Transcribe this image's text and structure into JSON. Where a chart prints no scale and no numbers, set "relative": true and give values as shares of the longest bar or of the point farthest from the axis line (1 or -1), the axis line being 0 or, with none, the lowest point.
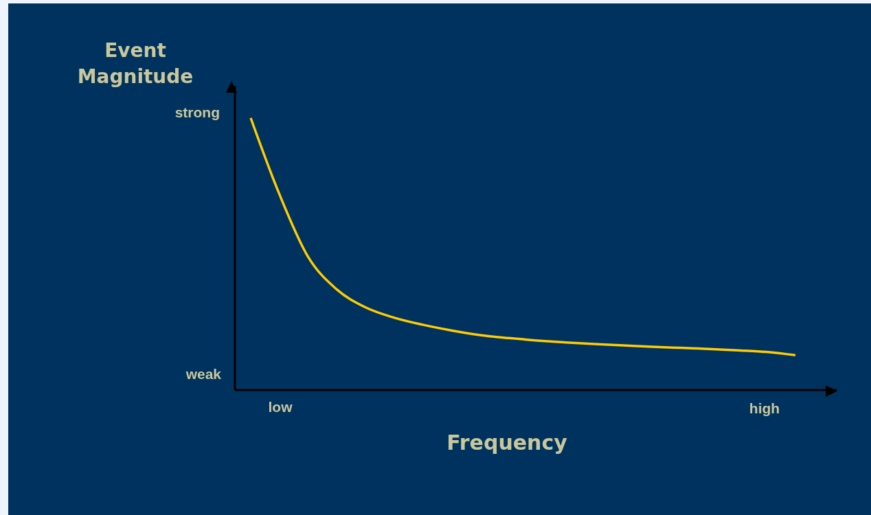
{
  "chart_data": {
    "type": "line",
    "relative": true,
    "xlabel": "Frequency",
    "ylabel": "Event Magnitude",
    "categories": [
      null,
      null,
      null,
      null,
      null,
      null,
      null,
      null,
      null,
      null,
      null,
      null,
      null,
      null,
      null,
      null,
      null,
      null,
      null,
      null
    ],
    "series": [
      {
        "color": "#ffcc00",
        "values": [
          1.0,
          0.72,
          0.49,
          0.37,
          0.304,
          0.266,
          0.24,
          0.219,
          0.202,
          0.191,
          0.182,
          0.175,
          0.169,
          0.164,
          0.159,
          0.155,
          0.151,
          0.146,
          0.14,
          0.128
        ]
      }
    ],
    "annotations": [
      "strong",
      "weak",
      "low",
      "high"
    ],
    "grid": false,
    "legend": false,
    "marker": "none",
    "line_style": "solid"
  }
}
